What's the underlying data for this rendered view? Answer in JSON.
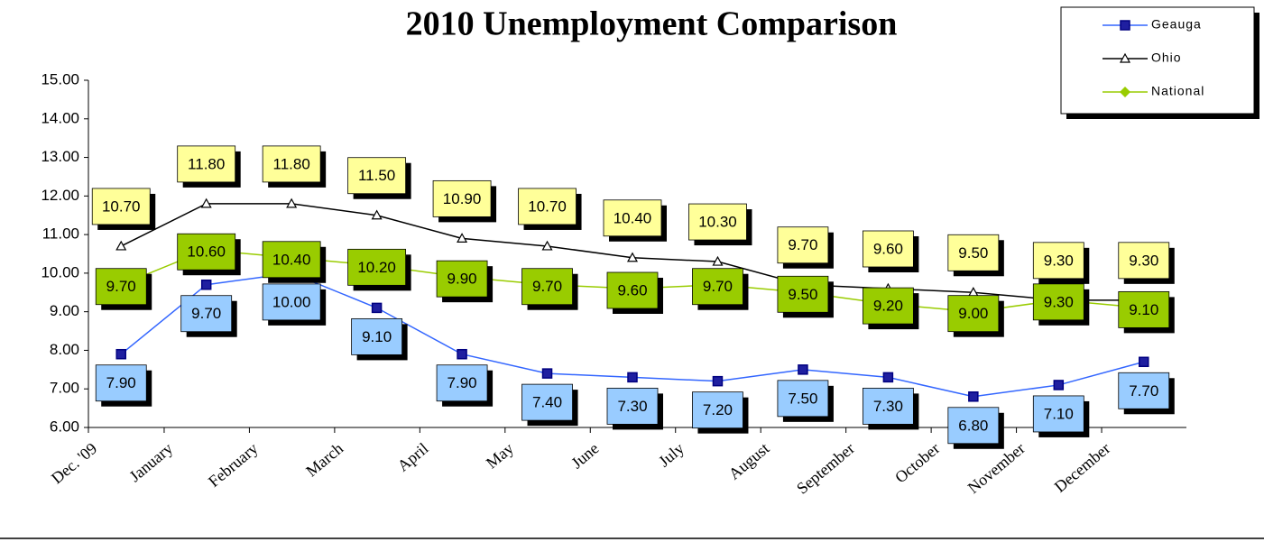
{
  "chart_data": {
    "type": "line",
    "title": "2010 Unemployment Comparison",
    "categories": [
      "Dec. '09",
      "January",
      "February",
      "March",
      "April",
      "May",
      "June",
      "July",
      "August",
      "September",
      "October",
      "November",
      "December"
    ],
    "series": [
      {
        "name": "Geauga",
        "color": "#3366ff",
        "marker": "square",
        "label_color": "#99ccff",
        "values": [
          7.9,
          9.7,
          10.0,
          9.1,
          7.9,
          7.4,
          7.3,
          7.2,
          7.5,
          7.3,
          6.8,
          7.1,
          7.7
        ],
        "value_labels": [
          "7.90",
          "9.70",
          "10.00",
          "9.10",
          "7.90",
          "7.40",
          "7.30",
          "7.20",
          "7.50",
          "7.30",
          "6.80",
          "7.10",
          "7.70"
        ]
      },
      {
        "name": "Ohio",
        "color": "#000000",
        "marker": "triangle",
        "label_color": "#ffff99",
        "values": [
          10.7,
          11.8,
          11.8,
          11.5,
          10.9,
          10.7,
          10.4,
          10.3,
          9.7,
          9.6,
          9.5,
          9.3,
          9.3
        ],
        "value_labels": [
          "10.70",
          "11.80",
          "11.80",
          "11.50",
          "10.90",
          "10.70",
          "10.40",
          "10.30",
          "9.70",
          "9.60",
          "9.50",
          "9.30",
          "9.30"
        ]
      },
      {
        "name": "National",
        "color": "#99cc00",
        "marker": "diamond",
        "label_color": "#99cc00",
        "values": [
          9.7,
          10.6,
          10.4,
          10.2,
          9.9,
          9.7,
          9.6,
          9.7,
          9.5,
          9.2,
          9.0,
          9.3,
          9.1
        ],
        "value_labels": [
          "9.70",
          "10.60",
          "10.40",
          "10.20",
          "9.90",
          "9.70",
          "9.60",
          "9.70",
          "9.50",
          "9.20",
          "9.00",
          "9.30",
          "9.10"
        ]
      }
    ],
    "ylim": [
      6,
      15
    ],
    "yticks": [
      {
        "value": 6,
        "label": "6.00"
      },
      {
        "value": 7,
        "label": "7.00"
      },
      {
        "value": 8,
        "label": "8.00"
      },
      {
        "value": 9,
        "label": "9.00"
      },
      {
        "value": 10,
        "label": "10.00"
      },
      {
        "value": 11,
        "label": "11.00"
      },
      {
        "value": 12,
        "label": "12.00"
      },
      {
        "value": 13,
        "label": "13.00"
      },
      {
        "value": 14,
        "label": "14.00"
      },
      {
        "value": 15,
        "label": "15.00"
      }
    ],
    "legend": "top-right"
  }
}
